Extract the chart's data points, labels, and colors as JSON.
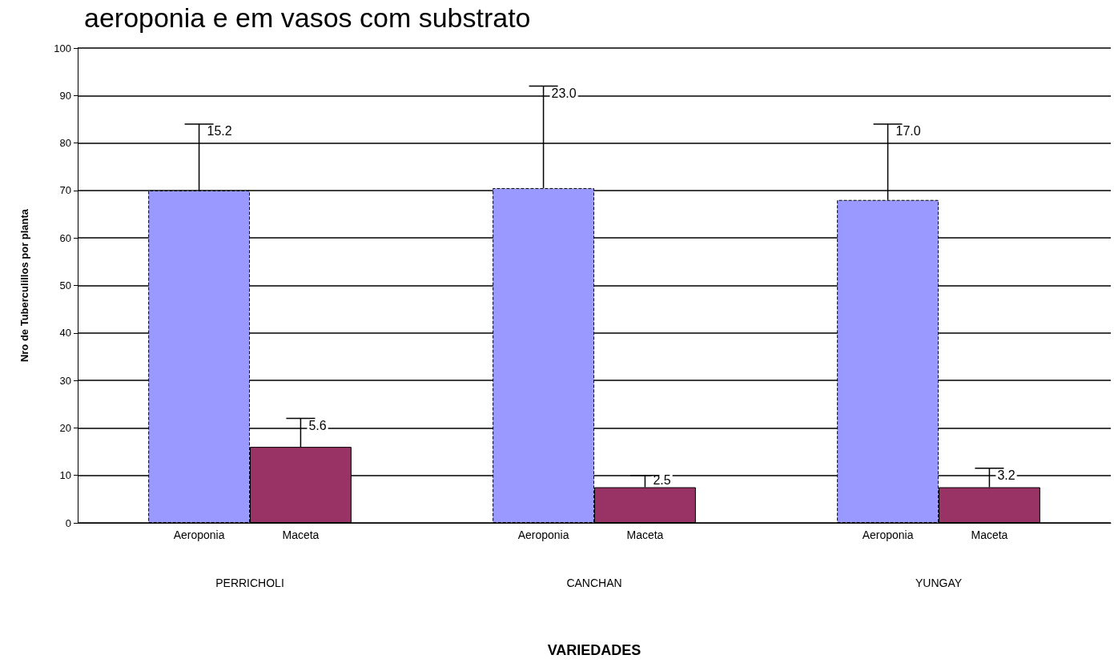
{
  "chart_data": {
    "type": "bar",
    "title": "aeroponia e em vasos com substrato",
    "xlabel": "VARIEDADES",
    "ylabel": "Nro de Tuberculillos por planta",
    "categories": [
      "PERRICHOLI",
      "CANCHAN",
      "YUNGAY"
    ],
    "series": [
      {
        "name": "Aeroponia",
        "color": "#9999ff",
        "line_style": "dashed",
        "values": [
          70,
          70.5,
          68
        ],
        "errors": [
          [
            70,
            84
          ],
          [
            70.5,
            92
          ],
          [
            68,
            84
          ]
        ]
      },
      {
        "name": "Maceta",
        "color": "#993366",
        "line_style": "solid",
        "values": [
          16,
          7.5,
          7.5
        ],
        "errors": [
          [
            16,
            22
          ],
          [
            7.5,
            10
          ],
          [
            7.5,
            11.5
          ]
        ]
      }
    ],
    "annotations": [
      "15.2",
      "5.6",
      "23.0",
      "2.5",
      "17.0",
      "3.2"
    ],
    "ylim": [
      0,
      100
    ],
    "yticks": [
      0,
      10,
      20,
      30,
      40,
      50,
      60,
      70,
      80,
      90,
      100
    ],
    "grid": "y",
    "legend": false
  }
}
